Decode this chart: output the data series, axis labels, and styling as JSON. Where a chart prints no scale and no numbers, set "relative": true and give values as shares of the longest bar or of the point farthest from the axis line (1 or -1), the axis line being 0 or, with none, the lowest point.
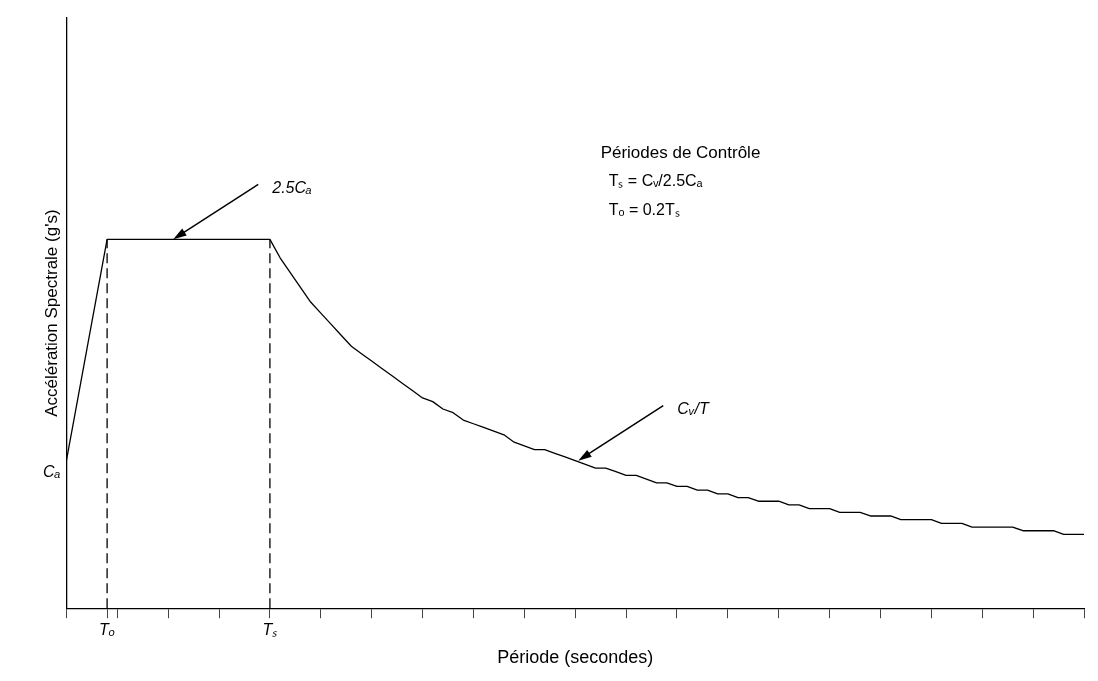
{
  "chart_data": {
    "type": "line",
    "relative": true,
    "xlabel": "Période (secondes)",
    "ylabel": "Accélération Spectrale (g's)",
    "categories": [
      null,
      null,
      null,
      null,
      "Tₒ",
      null,
      null,
      null,
      null,
      null,
      null,
      null,
      null,
      null,
      null,
      null,
      null,
      null,
      null,
      null,
      "Tₛ",
      null,
      null,
      null,
      null,
      null,
      null,
      null,
      null,
      null,
      null,
      null,
      null,
      null,
      null,
      null,
      null,
      null,
      null,
      null,
      null,
      null,
      null,
      null,
      null,
      null,
      null,
      null,
      null,
      null,
      null,
      null,
      null,
      null,
      null,
      null,
      null,
      null,
      null,
      null,
      null,
      null,
      null,
      null,
      null,
      null,
      null,
      null,
      null,
      null,
      null,
      null,
      null,
      null,
      null,
      null,
      null,
      null,
      null,
      null,
      null,
      null,
      null,
      null,
      null,
      null,
      null,
      null,
      null,
      null,
      null,
      null,
      null,
      null,
      null,
      null,
      null,
      null,
      null,
      null,
      null
    ],
    "series": [
      {
        "color": "#000000",
        "values": [
          0.4,
          0.55,
          0.7,
          0.85,
          1,
          1,
          1,
          1,
          1,
          1,
          1,
          1,
          1,
          1,
          1,
          1,
          1,
          1,
          1,
          1,
          1,
          0.95,
          0.91,
          0.87,
          0.83,
          0.8,
          0.77,
          0.74,
          0.71,
          0.69,
          0.67,
          0.65,
          0.63,
          0.61,
          0.59,
          0.57,
          0.56,
          0.54,
          0.53,
          0.51,
          0.5,
          0.49,
          0.48,
          0.47,
          0.45,
          0.44,
          0.43,
          0.43,
          0.42,
          0.41,
          0.4,
          0.39,
          0.38,
          0.38,
          0.37,
          0.36,
          0.36,
          0.35,
          0.34,
          0.34,
          0.33,
          0.33,
          0.32,
          0.32,
          0.31,
          0.31,
          0.3,
          0.3,
          0.29,
          0.29,
          0.29,
          0.28,
          0.28,
          0.27,
          0.27,
          0.27,
          0.26,
          0.26,
          0.26,
          0.25,
          0.25,
          0.25,
          0.24,
          0.24,
          0.24,
          0.24,
          0.23,
          0.23,
          0.23,
          0.22,
          0.22,
          0.22,
          0.22,
          0.22,
          0.21,
          0.21,
          0.21,
          0.21,
          0.2,
          0.2,
          0.2
        ]
      }
    ],
    "ref_lines": [
      {
        "axis": "x",
        "value": "Tₒ",
        "label": null,
        "color": "#000000",
        "line_style": "dashed"
      },
      {
        "axis": "x",
        "value": "Tₛ",
        "label": null,
        "color": "#000000",
        "line_style": "dashed"
      }
    ],
    "annotations": [
      "Périodes de Contrôle",
      "Tₛ = Cᵥ/2.5Cₐ",
      "Tₒ = 0.2Tₛ",
      "2.5Cₐ",
      "Cᵥ/T",
      "Cₐ"
    ],
    "grid": false,
    "legend": false,
    "marker": "none",
    "line_style": "solid"
  }
}
